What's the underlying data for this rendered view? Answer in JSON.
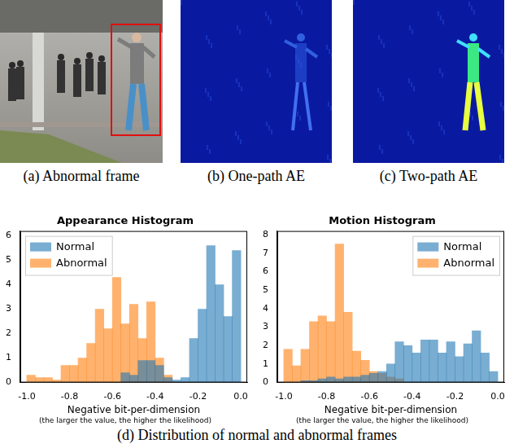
{
  "figure": {
    "panels": [
      {
        "caption": "(a) Abnormal frame"
      },
      {
        "caption": "(b) One-path AE"
      },
      {
        "caption": "(c) Two-path AE"
      }
    ],
    "caption": "(d) Distribution of normal and abnormal frames"
  },
  "chart_data": [
    {
      "type": "histogram",
      "title": "Appearance Histogram",
      "xlabel": "Negative bit-per-dimension",
      "subtitle": "(the larger the value, the higher the likelihood)",
      "bins": [
        -1.0,
        -0.96,
        -0.92,
        -0.88,
        -0.84,
        -0.8,
        -0.76,
        -0.72,
        -0.68,
        -0.64,
        -0.6,
        -0.56,
        -0.52,
        -0.48,
        -0.44,
        -0.4,
        -0.36,
        -0.32,
        -0.28,
        -0.24,
        -0.2,
        -0.16,
        -0.12,
        -0.08,
        -0.04,
        0.0
      ],
      "series": [
        {
          "name": "Normal",
          "color": "#1f77b4",
          "values": [
            0,
            0,
            0,
            0,
            0,
            0,
            0,
            0,
            0,
            0,
            0,
            0.4,
            0.3,
            0.9,
            0.9,
            0.7,
            0.2,
            0.1,
            0.2,
            1.8,
            3.0,
            5.6,
            4.0,
            2.7,
            5.4
          ]
        },
        {
          "name": "Abnormal",
          "color": "#ff7f0e",
          "values": [
            0.3,
            0.2,
            0.2,
            0.1,
            0.7,
            0.7,
            1.0,
            1.6,
            3.0,
            2.2,
            4.3,
            2.4,
            3.2,
            1.8,
            3.3,
            1.0,
            0.3,
            0,
            0,
            0,
            0,
            0,
            0,
            0,
            0
          ]
        }
      ],
      "xlim": [
        -1.03,
        0.03
      ],
      "xticks": [
        {
          "value": -1.0,
          "label": "-1.0"
        },
        -0.8,
        -0.6,
        -0.4,
        -0.2,
        {
          "value": 0,
          "label": "0.0"
        }
      ],
      "ylim": [
        0,
        6.2
      ],
      "yticks": [
        0,
        1,
        2,
        3,
        4,
        5,
        6
      ],
      "grid": false,
      "legend": "upper left"
    },
    {
      "type": "histogram",
      "title": "Motion Histogram",
      "xlabel": "Negative bit-per-dimension",
      "subtitle": "(the larger the value, the higher the likelihood)",
      "bins": [
        -1.0,
        -0.96,
        -0.92,
        -0.88,
        -0.84,
        -0.8,
        -0.76,
        -0.72,
        -0.68,
        -0.64,
        -0.6,
        -0.56,
        -0.52,
        -0.48,
        -0.44,
        -0.4,
        -0.36,
        -0.32,
        -0.28,
        -0.24,
        -0.2,
        -0.16,
        -0.12,
        -0.08,
        -0.04,
        0.0
      ],
      "series": [
        {
          "name": "Normal",
          "color": "#1f77b4",
          "values": [
            0,
            0,
            0.1,
            0.1,
            0.2,
            0.3,
            0.2,
            0.3,
            0.3,
            0.4,
            0.5,
            0.6,
            1.0,
            2.2,
            2.0,
            1.6,
            2.3,
            2.3,
            1.6,
            2.2,
            1.4,
            2.1,
            2.8,
            1.6,
            0.6
          ]
        },
        {
          "name": "Abnormal",
          "color": "#ff7f0e",
          "values": [
            1.8,
            0.9,
            1.8,
            3.3,
            3.6,
            3.3,
            7.5,
            3.8,
            1.7,
            1.2,
            0.6,
            0.5,
            0.3,
            0.2,
            0,
            0,
            0,
            0,
            0,
            0,
            0,
            0,
            0,
            0,
            0
          ]
        }
      ],
      "xlim": [
        -1.03,
        0.03
      ],
      "xticks": [
        {
          "value": -1.0,
          "label": "-1.0"
        },
        -0.8,
        -0.6,
        -0.4,
        -0.2,
        {
          "value": 0,
          "label": "0.0"
        }
      ],
      "ylim": [
        0,
        8.2
      ],
      "yticks": [
        0,
        1,
        2,
        3,
        4,
        5,
        6,
        7,
        8
      ],
      "grid": false,
      "legend": "upper right"
    }
  ]
}
